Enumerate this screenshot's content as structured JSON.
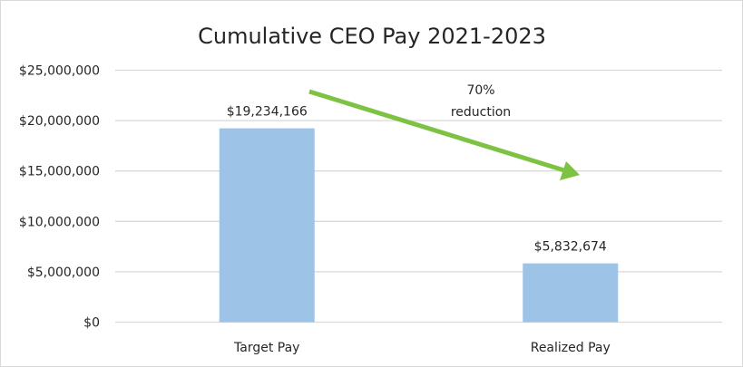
{
  "chart_data": {
    "type": "bar",
    "title": "Cumulative CEO Pay 2021-2023",
    "categories": [
      "Target Pay",
      "Realized Pay"
    ],
    "values": [
      19234166,
      5832674
    ],
    "data_labels": [
      "$19,234,166",
      "$5,832,674"
    ],
    "ylim": [
      0,
      25000000
    ],
    "yticks": [
      0,
      5000000,
      10000000,
      15000000,
      20000000,
      25000000
    ],
    "ytick_labels": [
      "$0",
      "$5,000,000",
      "$10,000,000",
      "$15,000,000",
      "$20,000,000",
      "$25,000,000"
    ],
    "grid": true,
    "bar_color": "#9dc3e6",
    "annotation": {
      "line1": "70%",
      "line2": "reduction",
      "arrow_color": "#7dc242"
    }
  }
}
